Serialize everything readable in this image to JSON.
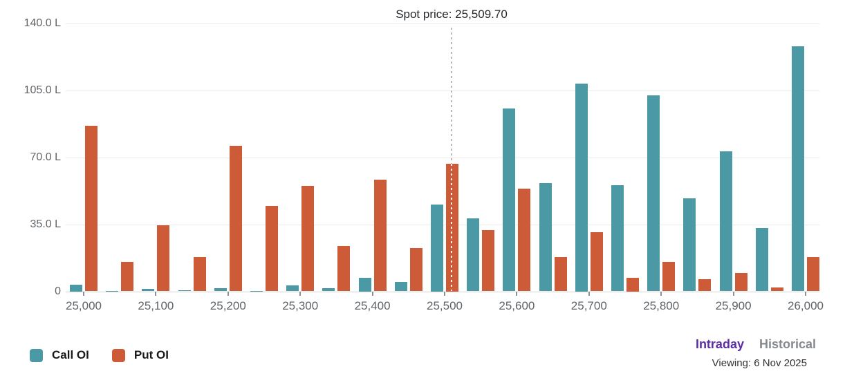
{
  "header": {
    "spot_label": "Spot price: 25,509.70"
  },
  "chart_data": {
    "type": "bar",
    "title": "Spot price: 25,509.70",
    "unit": "L",
    "spot_price": 25509.7,
    "grid": true,
    "legend_position": "bottom-left",
    "ylim": [
      0,
      140
    ],
    "y_ticks": [
      {
        "value": 140,
        "label": "140.0 L"
      },
      {
        "value": 105,
        "label": "105.0 L"
      },
      {
        "value": 70,
        "label": "70.0 L"
      },
      {
        "value": 35,
        "label": "35.0 L"
      },
      {
        "value": 0,
        "label": "0"
      }
    ],
    "x_ticks": [
      {
        "value": 25000,
        "label": "25,000"
      },
      {
        "value": 25100,
        "label": "25,100"
      },
      {
        "value": 25200,
        "label": "25,200"
      },
      {
        "value": 25300,
        "label": "25,300"
      },
      {
        "value": 25400,
        "label": "25,400"
      },
      {
        "value": 25500,
        "label": "25,500"
      },
      {
        "value": 25600,
        "label": "25,600"
      },
      {
        "value": 25700,
        "label": "25,700"
      },
      {
        "value": 25800,
        "label": "25,800"
      },
      {
        "value": 25900,
        "label": "25,900"
      },
      {
        "value": 26000,
        "label": "26,000"
      }
    ],
    "categories": [
      25000,
      25050,
      25100,
      25150,
      25200,
      25250,
      25300,
      25350,
      25400,
      25450,
      25500,
      25550,
      25600,
      25650,
      25700,
      25750,
      25800,
      25850,
      25900,
      25950,
      26000
    ],
    "series": [
      {
        "name": "Call OI",
        "color": "#4a99a4",
        "values": [
          3.5,
          0.3,
          1.2,
          0.5,
          1.5,
          0.3,
          3,
          1.8,
          7,
          5,
          45.5,
          38,
          95.5,
          56.5,
          108.5,
          55.5,
          102.5,
          48.5,
          73,
          33,
          128
        ]
      },
      {
        "name": "Put OI",
        "color": "#cd5b38",
        "values": [
          86.5,
          15.5,
          34.5,
          18,
          76,
          44.5,
          55,
          23.5,
          58.5,
          22.5,
          66.5,
          32,
          53.5,
          18,
          31,
          7,
          15.5,
          6.5,
          9.5,
          2,
          18
        ]
      }
    ]
  },
  "legend": {
    "call_label": "Call OI",
    "put_label": "Put OI"
  },
  "footer": {
    "intraday_label": "Intraday",
    "historical_label": "Historical",
    "viewing_label": "Viewing: 6 Nov 2025"
  },
  "colors": {
    "call": "#4a99a4",
    "put": "#cd5b38",
    "intraday_active": "#5e2ca5",
    "historical_inactive": "#85898e",
    "spot_line": "#b7b7b7"
  }
}
